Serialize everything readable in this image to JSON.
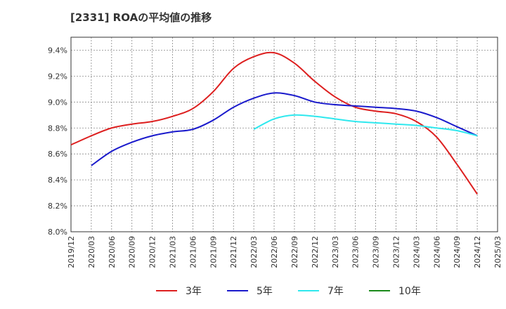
{
  "chart_data": {
    "type": "line",
    "title": "[2331]  ROAの平均値の推移",
    "xlabel": "",
    "ylabel": "",
    "ylim": [
      8.0,
      9.5
    ],
    "y_ticks": [
      "8.0%",
      "8.2%",
      "8.4%",
      "8.6%",
      "8.8%",
      "9.0%",
      "9.2%",
      "9.4%"
    ],
    "y_tick_values": [
      8.0,
      8.2,
      8.4,
      8.6,
      8.8,
      9.0,
      9.2,
      9.4
    ],
    "x_ticks": [
      "2019/12",
      "2020/03",
      "2020/06",
      "2020/09",
      "2020/12",
      "2021/03",
      "2021/06",
      "2021/09",
      "2021/12",
      "2022/03",
      "2022/06",
      "2022/09",
      "2022/12",
      "2023/03",
      "2023/06",
      "2023/09",
      "2023/12",
      "2024/03",
      "2024/06",
      "2024/09",
      "2024/12",
      "2025/03"
    ],
    "grid": true,
    "legend_position": "bottom",
    "series": [
      {
        "name": "3年",
        "color": "#dd1f1f",
        "points": [
          [
            "2019/12",
            8.67
          ],
          [
            "2020/03",
            8.74
          ],
          [
            "2020/06",
            8.8
          ],
          [
            "2020/09",
            8.83
          ],
          [
            "2020/12",
            8.85
          ],
          [
            "2021/03",
            8.89
          ],
          [
            "2021/06",
            8.95
          ],
          [
            "2021/09",
            9.08
          ],
          [
            "2021/12",
            9.26
          ],
          [
            "2022/03",
            9.35
          ],
          [
            "2022/06",
            9.38
          ],
          [
            "2022/09",
            9.3
          ],
          [
            "2022/12",
            9.16
          ],
          [
            "2023/03",
            9.04
          ],
          [
            "2023/06",
            8.96
          ],
          [
            "2023/09",
            8.93
          ],
          [
            "2023/12",
            8.91
          ],
          [
            "2024/03",
            8.85
          ],
          [
            "2024/06",
            8.73
          ],
          [
            "2024/09",
            8.52
          ],
          [
            "2024/12",
            8.29
          ]
        ]
      },
      {
        "name": "5年",
        "color": "#1a1acc",
        "points": [
          [
            "2020/03",
            8.51
          ],
          [
            "2020/06",
            8.62
          ],
          [
            "2020/09",
            8.69
          ],
          [
            "2020/12",
            8.74
          ],
          [
            "2021/03",
            8.77
          ],
          [
            "2021/06",
            8.79
          ],
          [
            "2021/09",
            8.86
          ],
          [
            "2021/12",
            8.96
          ],
          [
            "2022/03",
            9.03
          ],
          [
            "2022/06",
            9.07
          ],
          [
            "2022/09",
            9.05
          ],
          [
            "2022/12",
            9.0
          ],
          [
            "2023/03",
            8.98
          ],
          [
            "2023/06",
            8.97
          ],
          [
            "2023/09",
            8.96
          ],
          [
            "2023/12",
            8.95
          ],
          [
            "2024/03",
            8.93
          ],
          [
            "2024/06",
            8.88
          ],
          [
            "2024/09",
            8.81
          ],
          [
            "2024/12",
            8.74
          ]
        ]
      },
      {
        "name": "7年",
        "color": "#2ee8ee",
        "points": [
          [
            "2022/03",
            8.79
          ],
          [
            "2022/06",
            8.87
          ],
          [
            "2022/09",
            8.9
          ],
          [
            "2022/12",
            8.89
          ],
          [
            "2023/03",
            8.87
          ],
          [
            "2023/06",
            8.85
          ],
          [
            "2023/09",
            8.84
          ],
          [
            "2023/12",
            8.83
          ],
          [
            "2024/03",
            8.82
          ],
          [
            "2024/06",
            8.8
          ],
          [
            "2024/09",
            8.78
          ],
          [
            "2024/12",
            8.74
          ]
        ]
      },
      {
        "name": "10年",
        "color": "#1a8a1a",
        "points": []
      }
    ]
  }
}
